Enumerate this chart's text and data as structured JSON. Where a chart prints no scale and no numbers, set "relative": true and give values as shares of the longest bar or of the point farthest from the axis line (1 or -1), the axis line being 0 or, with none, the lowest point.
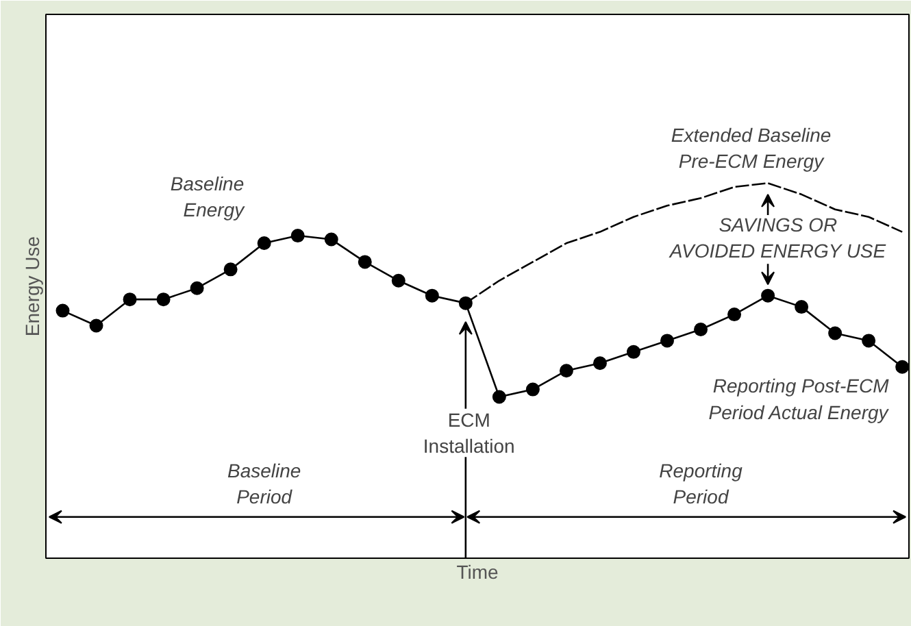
{
  "chart_data": {
    "type": "line",
    "relative": true,
    "xlabel": "Time",
    "ylabel": "Energy Use",
    "categories": [
      null,
      null,
      null,
      null,
      null,
      null,
      null,
      null,
      null,
      null,
      null,
      null,
      null,
      null,
      null,
      null,
      null,
      null,
      null,
      null,
      null,
      null,
      null,
      null,
      null,
      null
    ],
    "series": [
      {
        "color": "#000000",
        "marker": "circle",
        "line_style": "solid",
        "values": [
          0.66,
          0.62,
          0.69,
          0.69,
          0.72,
          0.77,
          0.84,
          0.86,
          0.85,
          0.79,
          0.74,
          0.7,
          0.68,
          0.43,
          0.45,
          0.5,
          0.52,
          0.55,
          0.58,
          0.61,
          0.65,
          0.7,
          0.67,
          0.6,
          0.58,
          0.51
        ]
      },
      {
        "color": "#000000",
        "marker": "none",
        "line_style": "dashed",
        "values": [
          null,
          null,
          null,
          null,
          null,
          null,
          null,
          null,
          null,
          null,
          null,
          null,
          0.68,
          0.74,
          0.79,
          0.84,
          0.87,
          0.91,
          0.94,
          0.96,
          0.99,
          1.0,
          0.97,
          0.93,
          0.91,
          0.87
        ]
      }
    ],
    "annotations": [
      "Baseline\nEnergy",
      "Extended Baseline\nPre-ECM Energy",
      "SAVINGS OR\nAVOIDED ENERGY USE",
      "Reporting Post-ECM\nPeriod Actual Energy",
      "ECM\nInstallation",
      "Baseline\nPeriod",
      "Reporting\nPeriod"
    ]
  }
}
